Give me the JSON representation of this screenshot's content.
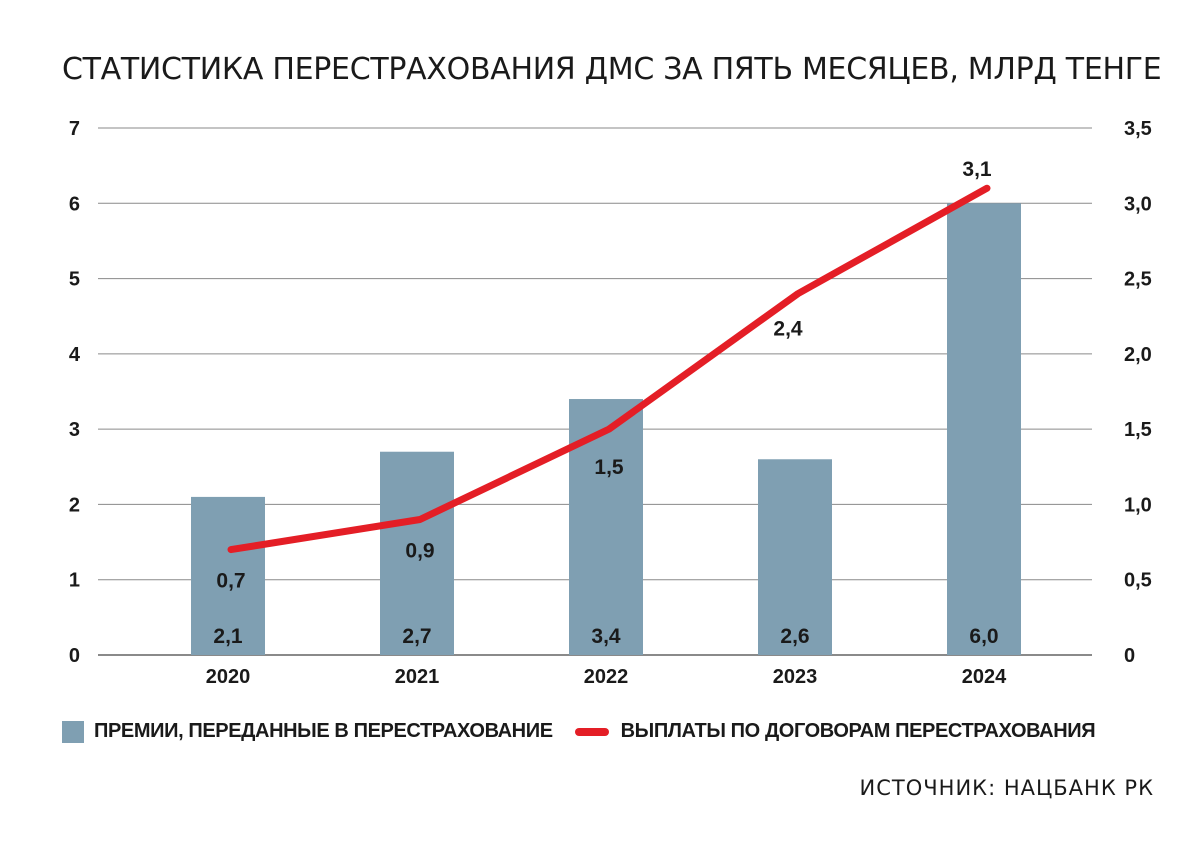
{
  "chart_data": {
    "type": "bar",
    "title": "СТАТИСТИКА ПЕРЕСТРАХОВАНИЯ ДМС ЗА ПЯТЬ МЕСЯЦЕВ, МЛРД ТЕНГЕ",
    "categories": [
      "2020",
      "2021",
      "2022",
      "2023",
      "2024"
    ],
    "series": [
      {
        "name": "ПРЕМИИ, ПЕРЕДАННЫЕ В ПЕРЕСТРАХОВАНИЕ",
        "type": "bar",
        "axis": "left",
        "values": [
          2.1,
          2.7,
          3.4,
          2.6,
          6.0
        ],
        "labels": [
          "2,1",
          "2,7",
          "3,4",
          "2,6",
          "6,0"
        ],
        "color": "#7f9fb2"
      },
      {
        "name": "ВЫПЛАТЫ ПО ДОГОВОРАМ ПЕРЕСТРАХОВАНИЯ",
        "type": "line",
        "axis": "right",
        "values": [
          0.7,
          0.9,
          1.5,
          2.4,
          3.1
        ],
        "labels": [
          "0,7",
          "0,9",
          "1,5",
          "2,4",
          "3,1"
        ],
        "color": "#e41e26"
      }
    ],
    "y_left": {
      "range": [
        0,
        7
      ],
      "ticks": [
        "0",
        "1",
        "2",
        "3",
        "4",
        "5",
        "6",
        "7"
      ]
    },
    "y_right": {
      "range": [
        0,
        3.5
      ],
      "ticks": [
        "0",
        "0,5",
        "1,0",
        "1,5",
        "2,0",
        "2,5",
        "3,0",
        "3,5"
      ]
    },
    "grid": true,
    "legend_position": "bottom-left"
  },
  "source": "ИСТОЧНИК: НАЦБАНК РК"
}
